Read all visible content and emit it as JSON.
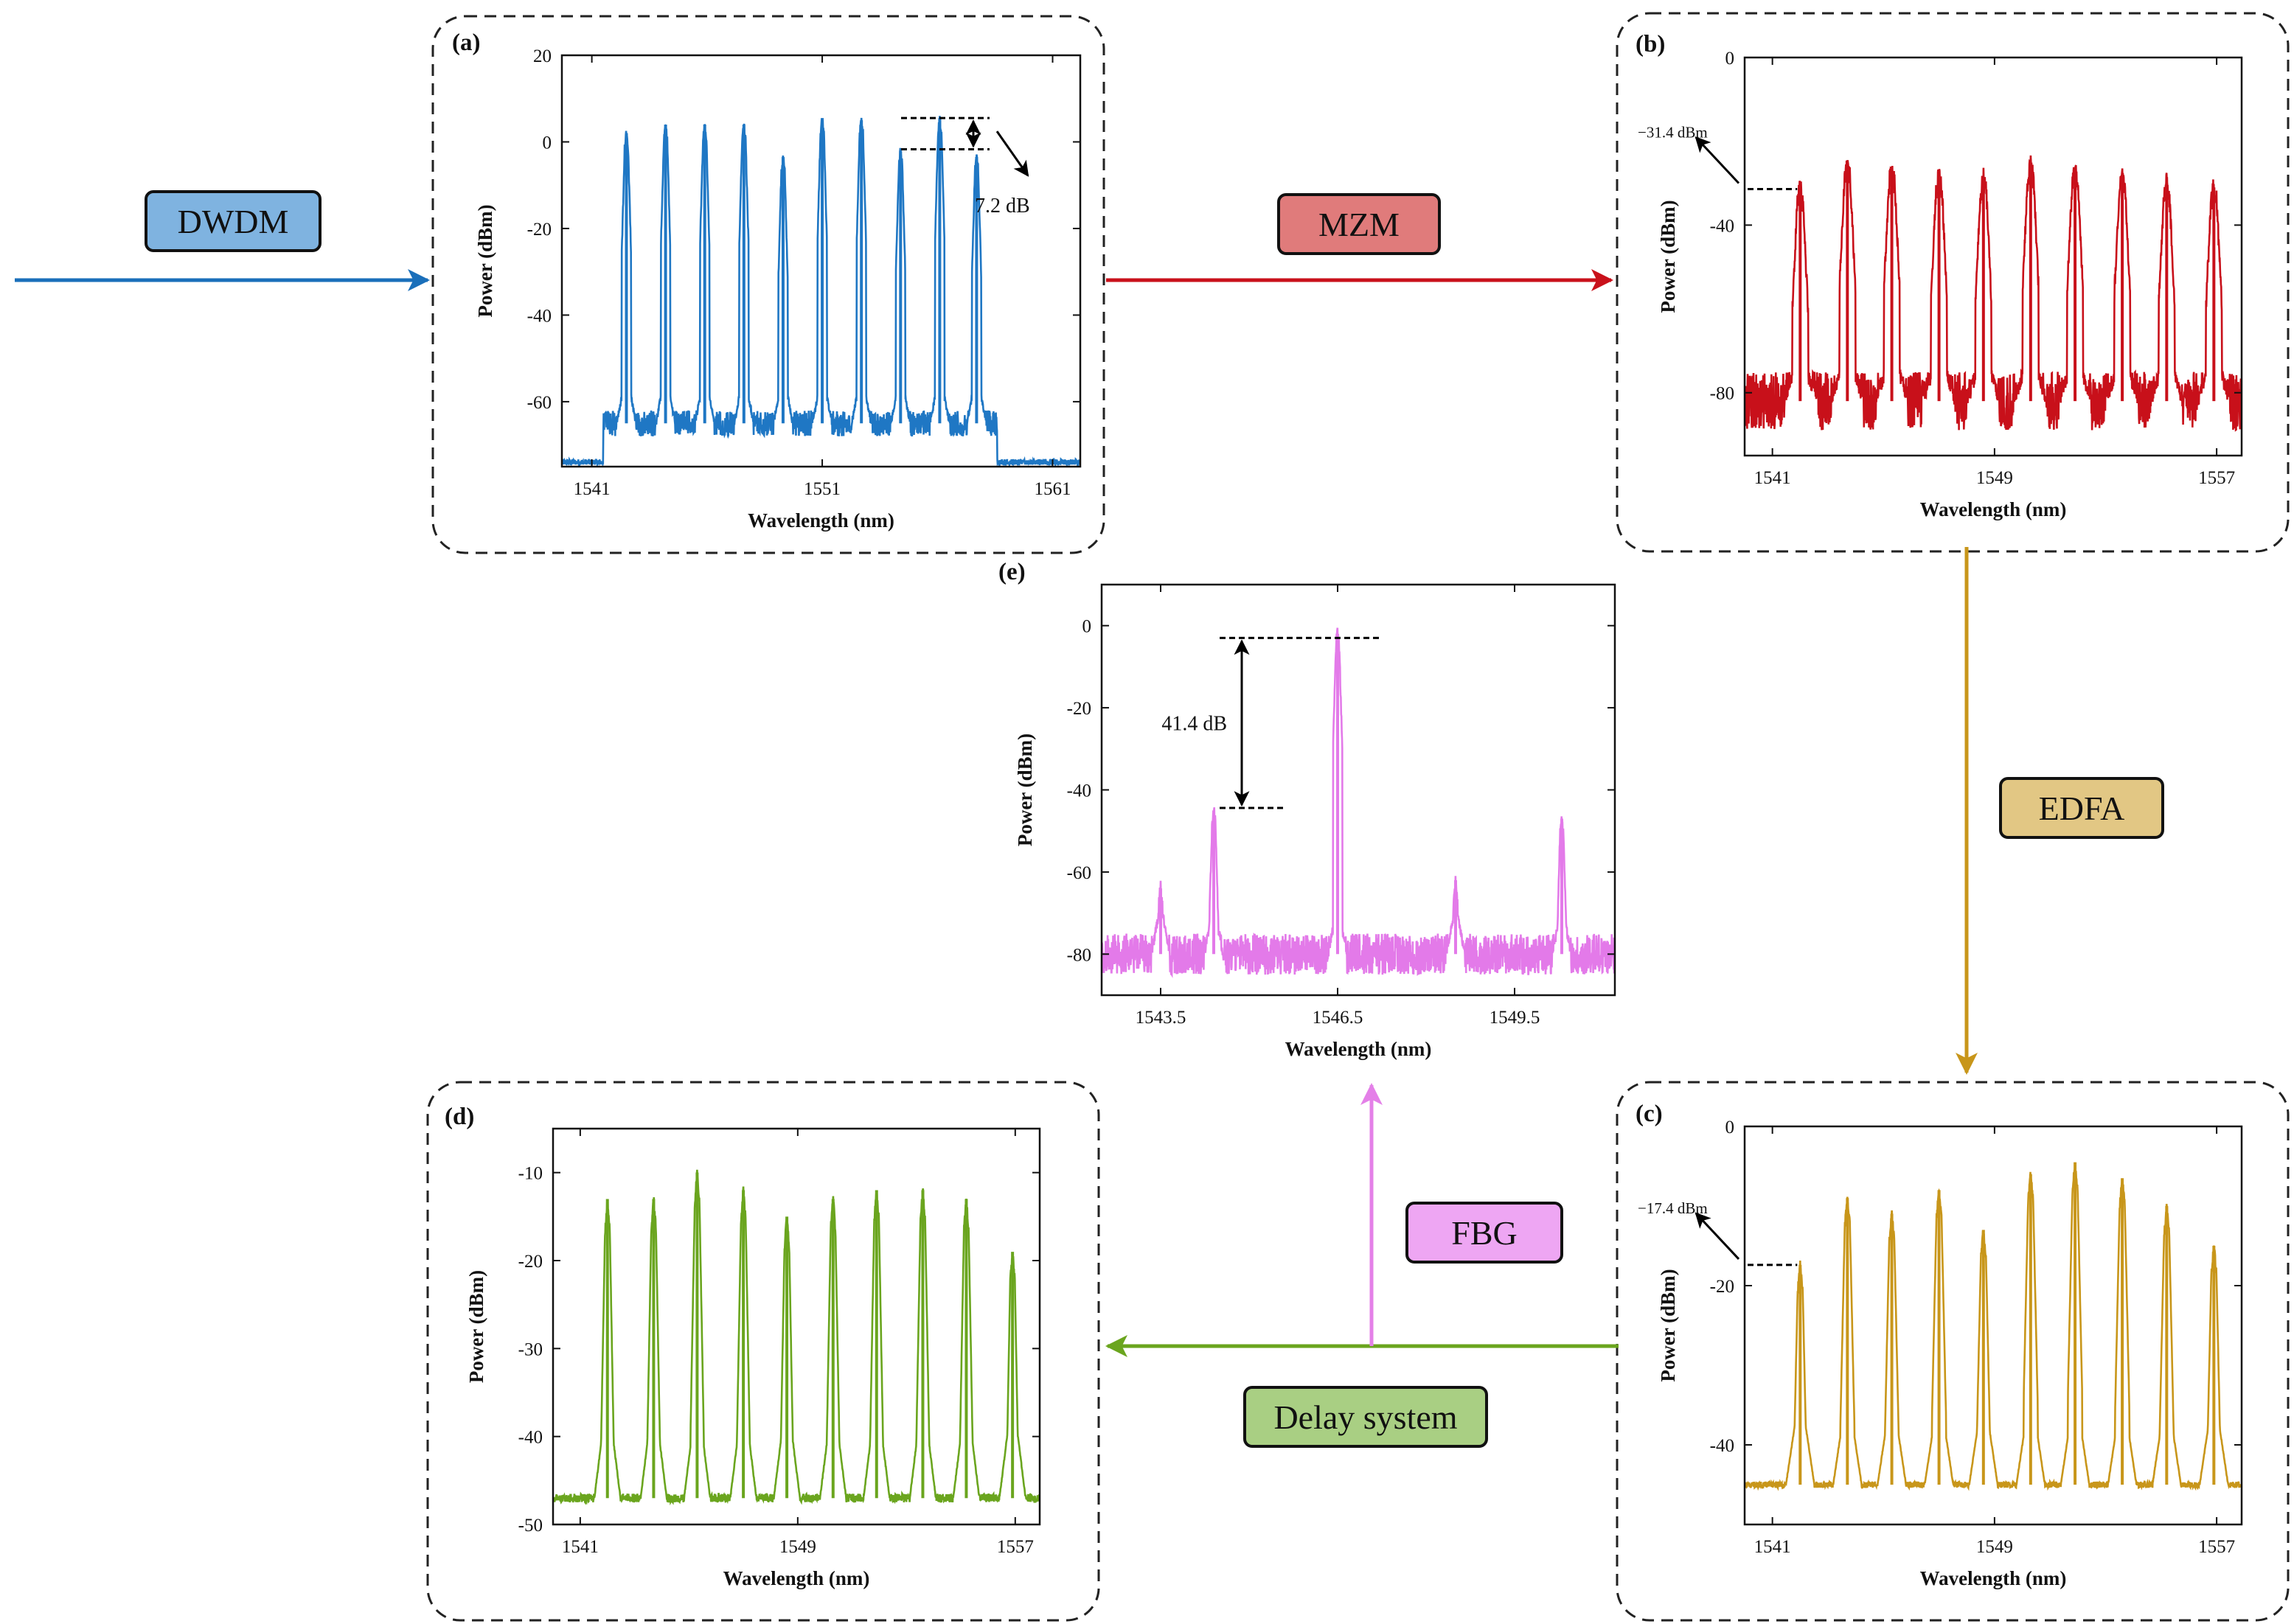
{
  "figure": {
    "stages": [
      {
        "key": "dwdm",
        "label": "DWDM",
        "fill": "#7fb3e0",
        "arrow_color": "#1a6fba"
      },
      {
        "key": "mzm",
        "label": "MZM",
        "fill": "#e07b7b",
        "arrow_color": "#c9111b"
      },
      {
        "key": "edfa",
        "label": "EDFA",
        "fill": "#e2c784",
        "arrow_color": "#c8961a"
      },
      {
        "key": "fbg",
        "label": "FBG",
        "fill": "#eea6f3",
        "arrow_color": "#e480e8"
      },
      {
        "key": "delay",
        "label": "Delay system",
        "fill": "#a9cf83",
        "arrow_color": "#6aa51e"
      }
    ]
  },
  "chart_data": [
    {
      "id": "a",
      "letter": "(a)",
      "type": "line",
      "color": "#1f77c4",
      "xlabel": "Wavelength (nm)",
      "ylabel": "Power (dBm)",
      "xlim": [
        1539.7,
        1562.2
      ],
      "ylim": [
        -75,
        20
      ],
      "xticks": [
        1541,
        1551,
        1561
      ],
      "xtick_labels": [
        "1541",
        "1551",
        "1561"
      ],
      "yticks": [
        20,
        0,
        -20,
        -40,
        -60
      ],
      "ytick_labels": [
        "20",
        "0",
        "-20",
        "-40",
        "-60"
      ],
      "floor": -65,
      "noise": 3,
      "edges": [
        1541.5,
        1558.6
      ],
      "outside": -74,
      "width": 0.13,
      "peaks": [
        {
          "x": 1542.5,
          "y": 2.0
        },
        {
          "x": 1544.2,
          "y": 4.0
        },
        {
          "x": 1545.9,
          "y": 4.0
        },
        {
          "x": 1547.6,
          "y": 4.0
        },
        {
          "x": 1549.3,
          "y": -3.5
        },
        {
          "x": 1551.0,
          "y": 5.5
        },
        {
          "x": 1552.7,
          "y": 5.0
        },
        {
          "x": 1554.4,
          "y": -2.0
        },
        {
          "x": 1556.1,
          "y": 5.5
        },
        {
          "x": 1557.7,
          "y": -3.5
        }
      ],
      "annotation": {
        "text": "7.2 dB",
        "y_top": 5.5,
        "y_bottom": -1.7
      }
    },
    {
      "id": "b",
      "letter": "(b)",
      "type": "line",
      "color": "#c8101a",
      "xlabel": "Wavelength (nm)",
      "ylabel": "Power (dBm)",
      "xlim": [
        1540.0,
        1557.9
      ],
      "ylim": [
        -95,
        0
      ],
      "xticks": [
        1541,
        1549,
        1557
      ],
      "xtick_labels": [
        "1541",
        "1549",
        "1557"
      ],
      "yticks": [
        0,
        -40,
        -80
      ],
      "ytick_labels": [
        "0",
        "-40",
        "-80"
      ],
      "floor": -82,
      "noise": 7,
      "edges": [
        1540.0,
        1557.9
      ],
      "outside": -82,
      "width": 0.18,
      "peaks": [
        {
          "x": 1542.0,
          "y": -31.4
        },
        {
          "x": 1543.7,
          "y": -26
        },
        {
          "x": 1545.3,
          "y": -27
        },
        {
          "x": 1547.0,
          "y": -28
        },
        {
          "x": 1548.6,
          "y": -29
        },
        {
          "x": 1550.3,
          "y": -26
        },
        {
          "x": 1551.9,
          "y": -27
        },
        {
          "x": 1553.6,
          "y": -28
        },
        {
          "x": 1555.2,
          "y": -30
        },
        {
          "x": 1556.9,
          "y": -31
        }
      ],
      "annotation": {
        "text": "−31.4 dBm",
        "y": -31.4
      }
    },
    {
      "id": "c",
      "letter": "(c)",
      "type": "line",
      "color": "#c8961a",
      "xlabel": "Wavelength (nm)",
      "ylabel": "Power (dBm)",
      "xlim": [
        1540.0,
        1557.9
      ],
      "ylim": [
        -50,
        0
      ],
      "xticks": [
        1541,
        1549,
        1557
      ],
      "xtick_labels": [
        "1541",
        "1549",
        "1557"
      ],
      "yticks": [
        0,
        -20,
        -40
      ],
      "ytick_labels": [
        "0",
        "-20",
        "-40"
      ],
      "floor": -45,
      "noise": 0.4,
      "edges": [
        1540.0,
        1557.9
      ],
      "outside": -45,
      "width": 0.16,
      "peaks": [
        {
          "x": 1542.0,
          "y": -17.4
        },
        {
          "x": 1543.7,
          "y": -9
        },
        {
          "x": 1545.3,
          "y": -11
        },
        {
          "x": 1547.0,
          "y": -8
        },
        {
          "x": 1548.6,
          "y": -13
        },
        {
          "x": 1550.3,
          "y": -6
        },
        {
          "x": 1551.9,
          "y": -4.5
        },
        {
          "x": 1553.6,
          "y": -6.5
        },
        {
          "x": 1555.2,
          "y": -10
        },
        {
          "x": 1556.9,
          "y": -15
        }
      ],
      "annotation": {
        "text": "−17.4 dBm",
        "y": -17.4
      }
    },
    {
      "id": "d",
      "letter": "(d)",
      "type": "line",
      "color": "#6aa51e",
      "xlabel": "Wavelength (nm)",
      "ylabel": "Power (dBm)",
      "xlim": [
        1540.0,
        1557.9
      ],
      "ylim": [
        -50,
        -5
      ],
      "xticks": [
        1541,
        1549,
        1557
      ],
      "xtick_labels": [
        "1541",
        "1549",
        "1557"
      ],
      "yticks": [
        -10,
        -20,
        -30,
        -40,
        -50
      ],
      "ytick_labels": [
        "-10",
        "-20",
        "-30",
        "-40",
        "-50"
      ],
      "floor": -47,
      "noise": 0.5,
      "edges": [
        1540.0,
        1557.9
      ],
      "outside": -47,
      "width": 0.15,
      "peaks": [
        {
          "x": 1542.0,
          "y": -13
        },
        {
          "x": 1543.7,
          "y": -13
        },
        {
          "x": 1545.3,
          "y": -10
        },
        {
          "x": 1547.0,
          "y": -12
        },
        {
          "x": 1548.6,
          "y": -15
        },
        {
          "x": 1550.3,
          "y": -13
        },
        {
          "x": 1551.9,
          "y": -12
        },
        {
          "x": 1553.6,
          "y": -12
        },
        {
          "x": 1555.2,
          "y": -13
        },
        {
          "x": 1556.9,
          "y": -19
        }
      ]
    },
    {
      "id": "e",
      "letter": "(e)",
      "type": "line",
      "color": "#e37ae9",
      "xlabel": "Wavelength (nm)",
      "ylabel": "Power (dBm)",
      "xlim": [
        1542.5,
        1551.2
      ],
      "ylim": [
        -90,
        10
      ],
      "xticks": [
        1543.5,
        1546.5,
        1549.5
      ],
      "xtick_labels": [
        "1543.5",
        "1546.5",
        "1549.5"
      ],
      "yticks": [
        0,
        -20,
        -40,
        -60,
        -80
      ],
      "ytick_labels": [
        "0",
        "-20",
        "-40",
        "-60",
        "-80"
      ],
      "floor": -80,
      "noise": 5,
      "edges": [
        1542.5,
        1551.2
      ],
      "outside": -80,
      "width": 0.05,
      "peaks": [
        {
          "x": 1543.5,
          "y": -64
        },
        {
          "x": 1544.4,
          "y": -45
        },
        {
          "x": 1546.5,
          "y": -2
        },
        {
          "x": 1548.5,
          "y": -62
        },
        {
          "x": 1550.3,
          "y": -47
        }
      ],
      "annotation": {
        "text": "41.4 dB",
        "y_top": -3,
        "y_bottom": -44.4
      }
    }
  ]
}
